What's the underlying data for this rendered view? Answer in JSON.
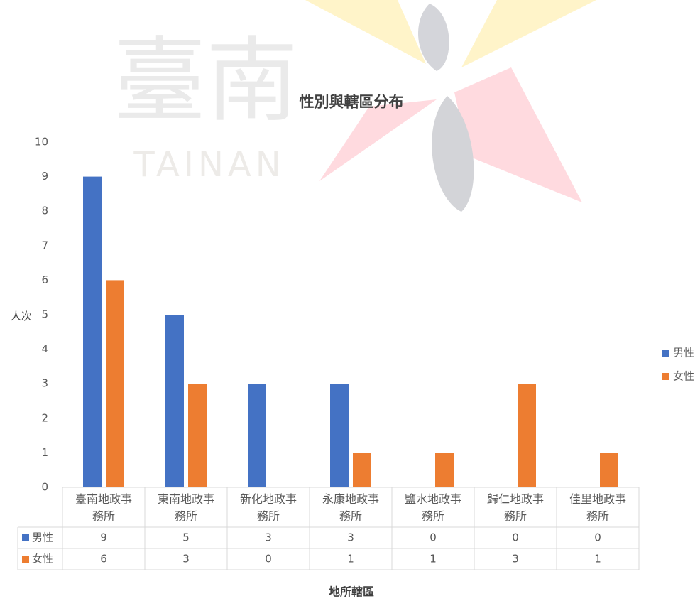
{
  "chart_data": {
    "type": "bar",
    "title": "性別與轄區分布",
    "watermark": [
      "臺南",
      "TAINAN"
    ],
    "x_label": "地所轄區",
    "y_label": "人次",
    "categories": [
      "臺南地政事務所",
      "東南地政事務所",
      "新化地政事務所",
      "永康地政事務所",
      "鹽水地政事務所",
      "歸仁地政事務所",
      "佳里地政事務所"
    ],
    "series": [
      {
        "name": "男性",
        "color": "#4472c4",
        "values": [
          9,
          5,
          3,
          3,
          0,
          0,
          0
        ]
      },
      {
        "name": "女性",
        "color": "#ed7d31",
        "values": [
          6,
          3,
          0,
          1,
          1,
          3,
          1
        ]
      }
    ],
    "ylim": [
      0,
      10
    ],
    "yticks": [
      0,
      1,
      2,
      3,
      4,
      5,
      6,
      7,
      8,
      9,
      10
    ],
    "grid": false,
    "legend": "right",
    "data_table": true
  }
}
